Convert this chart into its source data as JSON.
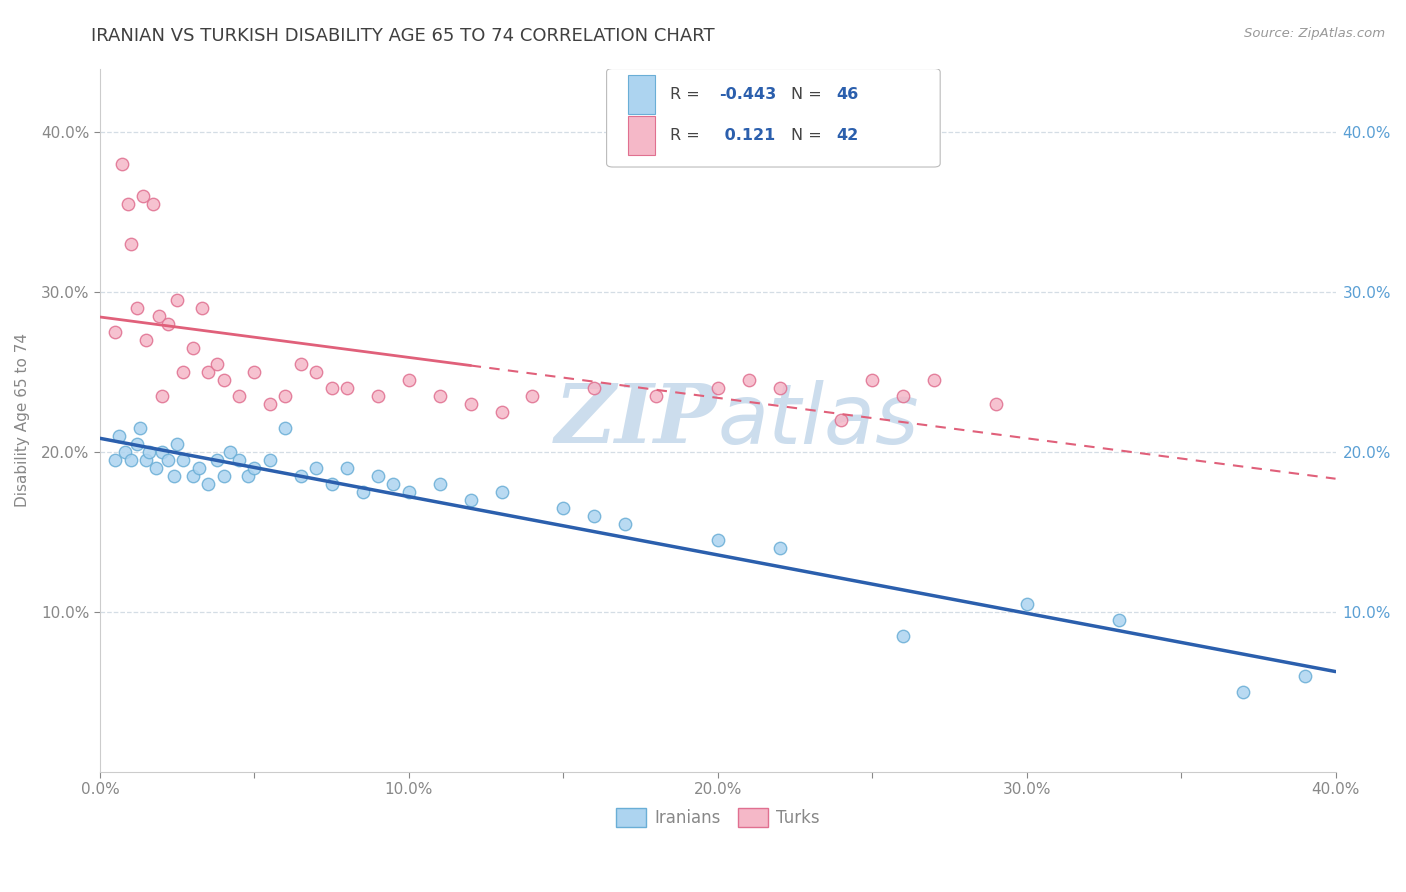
{
  "title": "IRANIAN VS TURKISH DISABILITY AGE 65 TO 74 CORRELATION CHART",
  "source": "Source: ZipAtlas.com",
  "ylabel": "Disability Age 65 to 74",
  "xlim": [
    0.0,
    0.4
  ],
  "ylim": [
    0.0,
    0.44
  ],
  "xtick_vals": [
    0.0,
    0.05,
    0.1,
    0.15,
    0.2,
    0.25,
    0.3,
    0.35,
    0.4
  ],
  "xtick_labels": [
    "0.0%",
    "",
    "10.0%",
    "",
    "20.0%",
    "",
    "30.0%",
    "",
    "40.0%"
  ],
  "ytick_vals": [
    0.1,
    0.2,
    0.3,
    0.4
  ],
  "ytick_labels": [
    "10.0%",
    "20.0%",
    "30.0%",
    "40.0%"
  ],
  "iranians_color": "#add4f0",
  "iranians_edge": "#6aaed6",
  "turks_color": "#f5b8c8",
  "turks_edge": "#e07090",
  "line_iranian_color": "#2b5fad",
  "line_turk_color": "#e0607a",
  "watermark_color": "#ccdded",
  "right_tick_color": "#5a9fd4",
  "iranians_x": [
    0.005,
    0.006,
    0.008,
    0.01,
    0.012,
    0.013,
    0.015,
    0.016,
    0.018,
    0.02,
    0.022,
    0.024,
    0.025,
    0.027,
    0.03,
    0.032,
    0.035,
    0.038,
    0.04,
    0.042,
    0.045,
    0.048,
    0.05,
    0.055,
    0.06,
    0.065,
    0.07,
    0.075,
    0.08,
    0.085,
    0.09,
    0.095,
    0.1,
    0.11,
    0.12,
    0.13,
    0.15,
    0.16,
    0.17,
    0.2,
    0.22,
    0.26,
    0.3,
    0.33,
    0.37,
    0.39
  ],
  "iranians_y": [
    0.195,
    0.21,
    0.2,
    0.195,
    0.205,
    0.215,
    0.195,
    0.2,
    0.19,
    0.2,
    0.195,
    0.185,
    0.205,
    0.195,
    0.185,
    0.19,
    0.18,
    0.195,
    0.185,
    0.2,
    0.195,
    0.185,
    0.19,
    0.195,
    0.215,
    0.185,
    0.19,
    0.18,
    0.19,
    0.175,
    0.185,
    0.18,
    0.175,
    0.18,
    0.17,
    0.175,
    0.165,
    0.16,
    0.155,
    0.145,
    0.14,
    0.085,
    0.105,
    0.095,
    0.05,
    0.06
  ],
  "turks_x": [
    0.005,
    0.007,
    0.009,
    0.01,
    0.012,
    0.014,
    0.015,
    0.017,
    0.019,
    0.02,
    0.022,
    0.025,
    0.027,
    0.03,
    0.033,
    0.035,
    0.038,
    0.04,
    0.045,
    0.05,
    0.055,
    0.06,
    0.065,
    0.07,
    0.075,
    0.08,
    0.09,
    0.1,
    0.11,
    0.12,
    0.13,
    0.14,
    0.16,
    0.18,
    0.2,
    0.21,
    0.22,
    0.24,
    0.25,
    0.26,
    0.27,
    0.29
  ],
  "turks_y": [
    0.275,
    0.38,
    0.355,
    0.33,
    0.29,
    0.36,
    0.27,
    0.355,
    0.285,
    0.235,
    0.28,
    0.295,
    0.25,
    0.265,
    0.29,
    0.25,
    0.255,
    0.245,
    0.235,
    0.25,
    0.23,
    0.235,
    0.255,
    0.25,
    0.24,
    0.24,
    0.235,
    0.245,
    0.235,
    0.23,
    0.225,
    0.235,
    0.24,
    0.235,
    0.24,
    0.245,
    0.24,
    0.22,
    0.245,
    0.235,
    0.245,
    0.23
  ],
  "grid_color": "#d4dde5",
  "background_color": "#ffffff",
  "title_color": "#404040",
  "axis_color": "#888888",
  "marker_size": 80,
  "line_turk_slope": 0.121,
  "line_iranian_slope": -0.443
}
